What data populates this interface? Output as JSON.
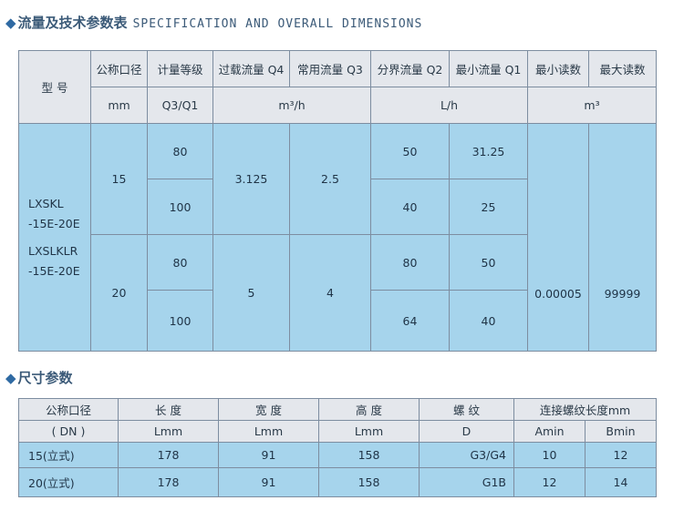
{
  "spec_section": {
    "diamond": "◆",
    "title_cn": "流量及技术参数表",
    "title_en": "SPECIFICATION AND OVERALL DIMENSIONS"
  },
  "spec_table": {
    "header": {
      "model": "型  号",
      "dn": "公称口径",
      "grade": "计量等级",
      "q4": "过载流量 Q4",
      "q3": "常用流量 Q3",
      "q2": "分界流量 Q2",
      "q1": "最小流量 Q1",
      "min_reading": "最小读数",
      "max_reading": "最大读数"
    },
    "units": {
      "dn": "mm",
      "grade": "Q3/Q1",
      "flow": "m³/h",
      "flow_l": "L/h",
      "reading": "m³"
    },
    "model_lines": [
      "LXSKL",
      "-15E-20E",
      "LXSLKLR",
      "-15E-20E"
    ],
    "groups": [
      {
        "dn": "15",
        "q4": "3.125",
        "q3": "2.5",
        "rows": [
          {
            "grade": "80",
            "q2": "50",
            "q1": "31.25"
          },
          {
            "grade": "100",
            "q2": "40",
            "q1": "25"
          }
        ]
      },
      {
        "dn": "20",
        "q4": "5",
        "q3": "4",
        "rows": [
          {
            "grade": "80",
            "q2": "80",
            "q1": "50"
          },
          {
            "grade": "100",
            "q2": "64",
            "q1": "40"
          }
        ]
      }
    ],
    "min_reading": "0.00005",
    "max_reading": "99999"
  },
  "dim_section": {
    "diamond": "◆",
    "title_cn": "尺寸参数"
  },
  "dim_table": {
    "header": {
      "dn": "公称口径",
      "dn_sub": "( DN )",
      "length": "长 度",
      "length_unit": "Lmm",
      "width": "宽 度",
      "width_unit": "Lmm",
      "height": "高 度",
      "height_unit": "Lmm",
      "thread": "螺 纹",
      "thread_unit": "D",
      "conn": "连接螺纹长度mm",
      "amin": "Amin",
      "bmin": "Bmin"
    },
    "rows": [
      {
        "dn": "15(立式)",
        "length": "178",
        "width": "91",
        "height": "158",
        "thread": "G3/G4",
        "amin": "10",
        "bmin": "12"
      },
      {
        "dn": "20(立式)",
        "length": "178",
        "width": "91",
        "height": "158",
        "thread": "G1B",
        "amin": "12",
        "bmin": "14"
      }
    ]
  }
}
